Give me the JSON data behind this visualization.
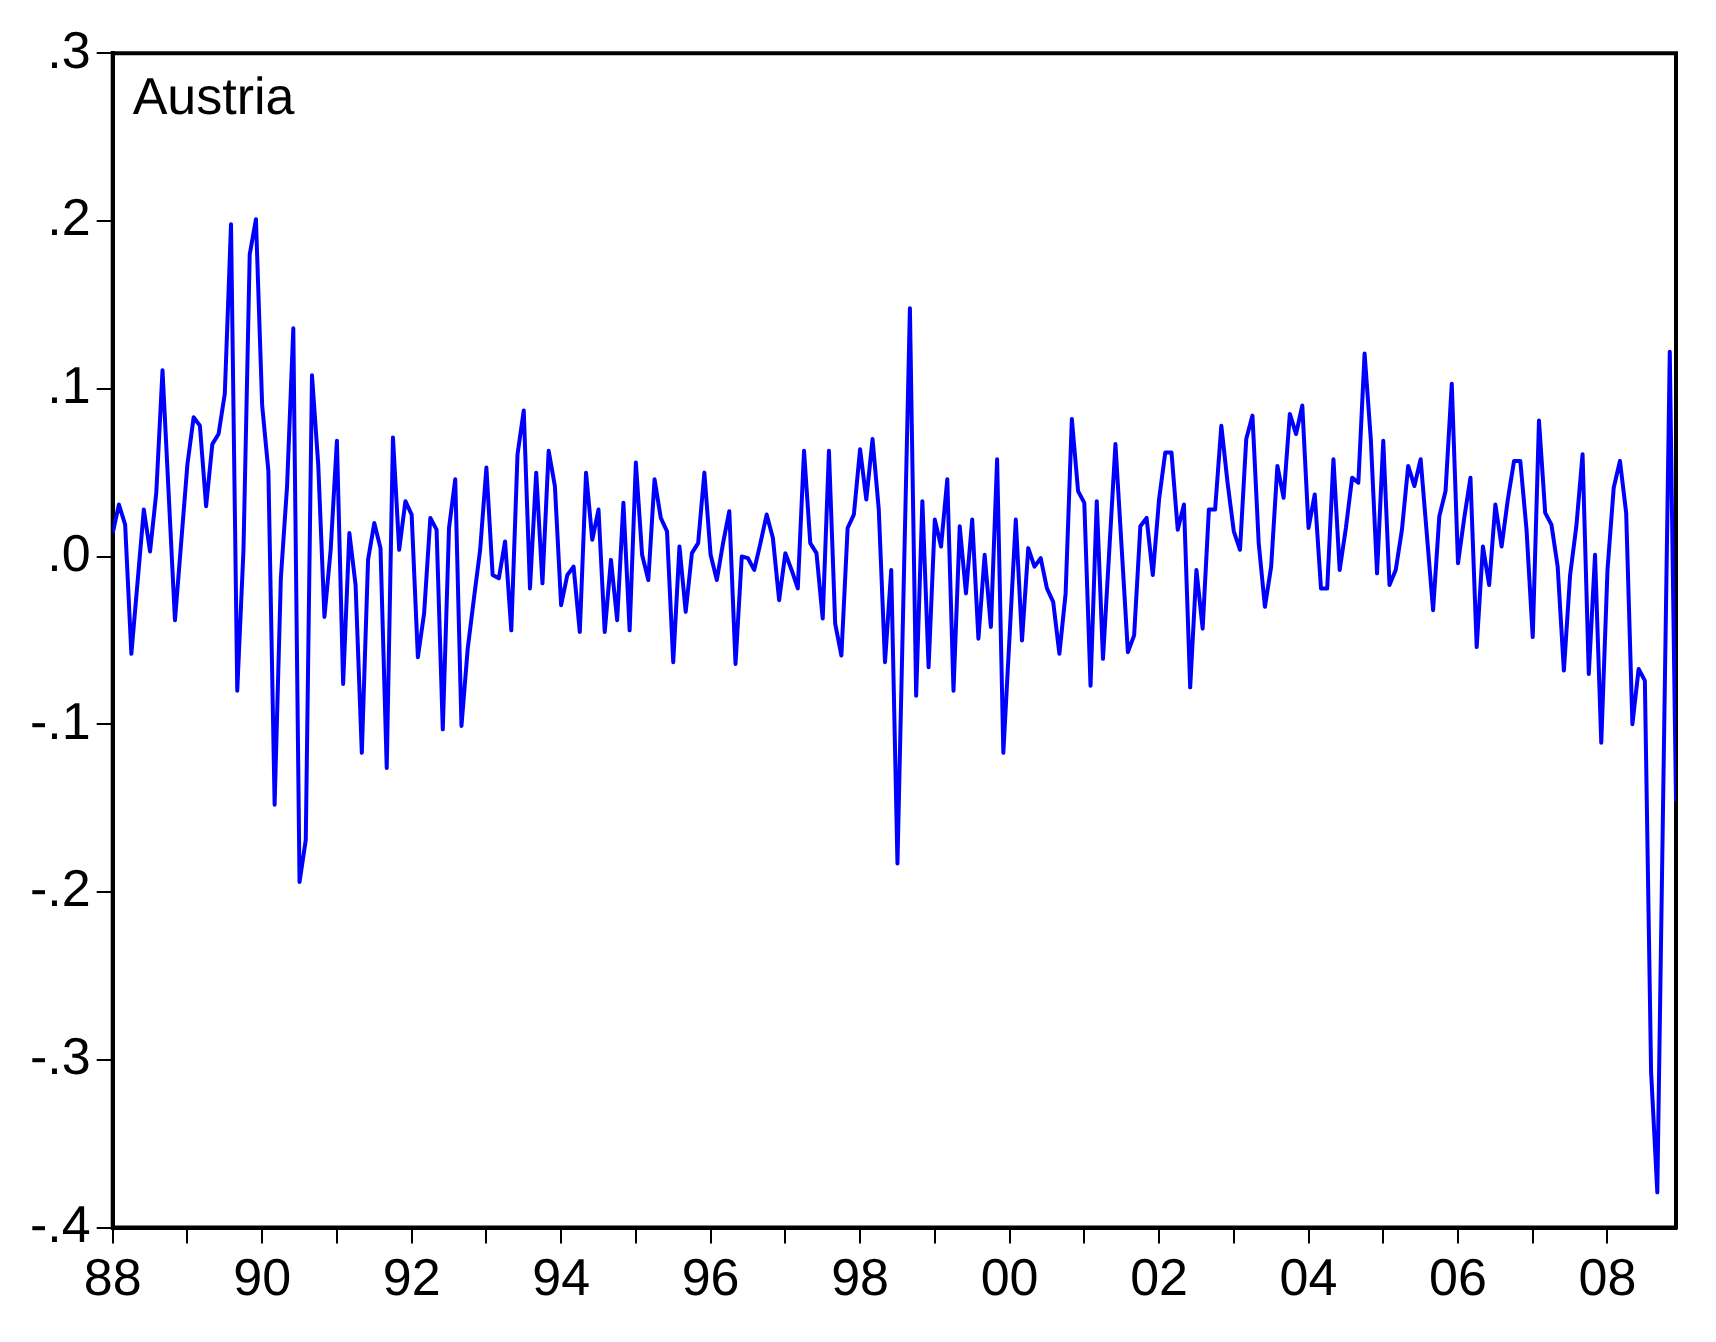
{
  "chart_data": {
    "type": "line",
    "title": "Austria",
    "legend": false,
    "grid": false,
    "marker": "none",
    "line_style": "solid",
    "xlim": [
      "1988-01",
      "2008-12"
    ],
    "xticks": [
      {
        "value": "1988-01",
        "label": "88"
      },
      {
        "value": "1989-01",
        "label": null
      },
      {
        "value": "1990-01",
        "label": "90"
      },
      {
        "value": "1991-01",
        "label": null
      },
      {
        "value": "1992-01",
        "label": "92"
      },
      {
        "value": "1993-01",
        "label": null
      },
      {
        "value": "1994-01",
        "label": "94"
      },
      {
        "value": "1995-01",
        "label": null
      },
      {
        "value": "1996-01",
        "label": "96"
      },
      {
        "value": "1997-01",
        "label": null
      },
      {
        "value": "1998-01",
        "label": "98"
      },
      {
        "value": "1999-01",
        "label": null
      },
      {
        "value": "2000-01",
        "label": "00"
      },
      {
        "value": "2001-01",
        "label": null
      },
      {
        "value": "2002-01",
        "label": "02"
      },
      {
        "value": "2003-01",
        "label": null
      },
      {
        "value": "2004-01",
        "label": "04"
      },
      {
        "value": "2005-01",
        "label": null
      },
      {
        "value": "2006-01",
        "label": "06"
      },
      {
        "value": "2007-01",
        "label": null
      },
      {
        "value": "2008-01",
        "label": "08"
      }
    ],
    "ylim": [
      -0.4,
      0.3
    ],
    "yticks": [
      {
        "value": -0.4,
        "label": "-.4"
      },
      {
        "value": -0.3,
        "label": "-.3"
      },
      {
        "value": -0.2,
        "label": "-.2"
      },
      {
        "value": -0.1,
        "label": "-.1"
      },
      {
        "value": 0,
        "label": ".0"
      },
      {
        "value": 0.1,
        "label": ".1"
      },
      {
        "value": 0.2,
        "label": ".2"
      },
      {
        "value": 0.3,
        "label": ".3"
      }
    ],
    "series": [
      {
        "color": "#0000ff",
        "x": [
          "1988-01",
          "1988-02",
          "1988-03",
          "1988-04",
          "1988-06",
          "1988-07",
          "1988-08",
          "1988-09",
          "1988-11",
          "1989-01",
          "1989-02",
          "1989-03",
          "1989-04",
          "1989-05",
          "1989-06",
          "1989-07",
          "1989-08",
          "1989-09",
          "1989-10",
          "1989-11",
          "1989-12",
          "1990-01",
          "1990-02",
          "1990-03",
          "1990-04",
          "1990-05",
          "1990-06",
          "1990-07",
          "1990-08",
          "1990-09",
          "1990-10",
          "1990-11",
          "1990-12",
          "1991-01",
          "1991-02",
          "1991-03",
          "1991-04",
          "1991-05",
          "1991-06",
          "1991-07",
          "1991-08",
          "1991-09",
          "1991-10",
          "1991-11",
          "1991-12",
          "1992-01",
          "1992-02",
          "1992-03",
          "1992-04",
          "1992-05",
          "1992-06",
          "1992-07",
          "1992-08",
          "1992-09",
          "1992-10",
          "1992-11",
          "1992-12",
          "1993-01",
          "1993-02",
          "1993-03",
          "1993-04",
          "1993-05",
          "1993-06",
          "1993-07",
          "1993-08",
          "1993-09",
          "1993-10",
          "1993-11",
          "1993-12",
          "1994-01",
          "1994-02",
          "1994-03",
          "1994-04",
          "1994-05",
          "1994-06",
          "1994-07",
          "1994-08",
          "1994-09",
          "1994-10",
          "1994-11",
          "1994-12",
          "1995-01",
          "1995-02",
          "1995-03",
          "1995-04",
          "1995-05",
          "1995-06",
          "1995-07",
          "1995-08",
          "1995-09",
          "1995-10",
          "1995-11",
          "1995-12",
          "1996-01",
          "1996-02",
          "1996-03",
          "1996-04",
          "1996-05",
          "1996-06",
          "1996-07",
          "1996-08",
          "1996-09",
          "1996-10",
          "1996-11",
          "1996-12",
          "1997-01",
          "1997-02",
          "1997-03",
          "1997-04",
          "1997-05",
          "1997-06",
          "1997-07",
          "1997-08",
          "1997-09",
          "1997-10",
          "1997-11",
          "1997-12",
          "1998-01",
          "1998-02",
          "1998-03",
          "1998-04",
          "1998-05",
          "1998-06",
          "1998-07",
          "1998-09",
          "1998-10",
          "1998-11",
          "1998-12",
          "1999-01",
          "1999-02",
          "1999-03",
          "1999-04",
          "1999-05",
          "1999-06",
          "1999-07",
          "1999-08",
          "1999-09",
          "1999-10",
          "1999-11",
          "1999-12",
          "2000-02",
          "2000-03",
          "2000-04",
          "2000-05",
          "2000-06",
          "2000-07",
          "2000-08",
          "2000-09",
          "2000-10",
          "2000-11",
          "2000-12",
          "2001-01",
          "2001-02",
          "2001-03",
          "2001-04",
          "2001-06",
          "2001-08",
          "2001-09",
          "2001-10",
          "2001-11",
          "2001-12",
          "2002-01",
          "2002-02",
          "2002-03",
          "2002-04",
          "2002-05",
          "2002-06",
          "2002-07",
          "2002-08",
          "2002-09",
          "2002-10",
          "2002-11",
          "2002-12",
          "2003-01",
          "2003-02",
          "2003-03",
          "2003-04",
          "2003-05",
          "2003-06",
          "2003-07",
          "2003-08",
          "2003-09",
          "2003-10",
          "2003-11",
          "2003-12",
          "2004-01",
          "2004-02",
          "2004-03",
          "2004-04",
          "2004-05",
          "2004-06",
          "2004-07",
          "2004-08",
          "2004-09",
          "2004-10",
          "2004-11",
          "2004-12",
          "2005-01",
          "2005-02",
          "2005-03",
          "2005-04",
          "2005-05",
          "2005-06",
          "2005-07",
          "2005-08",
          "2005-09",
          "2005-10",
          "2005-11",
          "2005-12",
          "2006-01",
          "2006-02",
          "2006-03",
          "2006-04",
          "2006-05",
          "2006-06",
          "2006-07",
          "2006-08",
          "2006-09",
          "2006-10",
          "2006-11",
          "2006-12",
          "2007-01",
          "2007-02",
          "2007-03",
          "2007-04",
          "2007-05",
          "2007-06",
          "2007-07",
          "2007-08",
          "2007-09",
          "2007-10",
          "2007-11",
          "2007-12",
          "2008-01",
          "2008-02",
          "2008-03",
          "2008-04",
          "2008-05",
          "2008-06",
          "2008-07",
          "2008-08",
          "2008-09",
          "2008-11",
          "2008-12"
        ],
        "values": [
          0.014,
          0.031,
          0.019,
          -0.058,
          0.028,
          0.003,
          0.038,
          0.111,
          -0.038,
          0.055,
          0.083,
          0.078,
          0.03,
          0.067,
          0.073,
          0.097,
          0.198,
          -0.08,
          0.004,
          0.18,
          0.201,
          0.09,
          0.051,
          -0.148,
          -0.013,
          0.042,
          0.136,
          -0.194,
          -0.169,
          0.108,
          0.055,
          -0.036,
          0.004,
          0.069,
          -0.076,
          0.014,
          -0.017,
          -0.117,
          -0.002,
          0.02,
          0.005,
          -0.126,
          0.071,
          0.004,
          0.033,
          0.025,
          -0.06,
          -0.034,
          0.023,
          0.016,
          -0.103,
          0.017,
          0.046,
          -0.101,
          -0.055,
          -0.025,
          0.004,
          0.053,
          -0.011,
          -0.013,
          0.009,
          -0.044,
          0.061,
          0.087,
          -0.019,
          0.05,
          -0.016,
          0.063,
          0.042,
          -0.029,
          -0.011,
          -0.006,
          -0.045,
          0.05,
          0.01,
          0.028,
          -0.045,
          -0.002,
          -0.038,
          0.032,
          -0.044,
          0.056,
          0.001,
          -0.014,
          0.046,
          0.023,
          0.015,
          -0.063,
          0.006,
          -0.033,
          0.002,
          0.008,
          0.05,
          0.001,
          -0.014,
          0.008,
          0.027,
          -0.064,
          0.0,
          -0.001,
          -0.008,
          0.008,
          0.025,
          0.011,
          -0.026,
          0.002,
          -0.008,
          -0.019,
          0.063,
          0.008,
          0.002,
          -0.037,
          0.063,
          -0.04,
          -0.059,
          0.017,
          0.025,
          0.064,
          0.034,
          0.07,
          0.028,
          -0.063,
          -0.008,
          -0.183,
          0.148,
          -0.083,
          0.033,
          -0.066,
          0.022,
          0.006,
          0.046,
          -0.08,
          0.018,
          -0.022,
          0.022,
          -0.049,
          0.001,
          -0.042,
          0.058,
          -0.117,
          0.022,
          -0.05,
          0.005,
          -0.006,
          -0.001,
          -0.019,
          -0.027,
          -0.058,
          -0.022,
          0.082,
          0.039,
          0.032,
          -0.077,
          0.033,
          -0.061,
          0.067,
          -0.057,
          -0.047,
          0.018,
          0.023,
          -0.011,
          0.034,
          0.062,
          0.062,
          0.016,
          0.031,
          -0.078,
          -0.008,
          -0.043,
          0.028,
          0.028,
          0.078,
          0.044,
          0.015,
          0.004,
          0.07,
          0.084,
          0.008,
          -0.03,
          -0.006,
          0.054,
          0.035,
          0.085,
          0.073,
          0.09,
          0.017,
          0.037,
          -0.019,
          -0.019,
          0.058,
          -0.008,
          0.017,
          0.047,
          0.044,
          0.121,
          0.07,
          -0.01,
          0.069,
          -0.017,
          -0.008,
          0.016,
          0.054,
          0.042,
          0.058,
          0.013,
          -0.032,
          0.024,
          0.039,
          0.103,
          -0.004,
          0.023,
          0.047,
          -0.054,
          0.006,
          -0.017,
          0.031,
          0.006,
          0.034,
          0.057,
          0.057,
          0.016,
          -0.048,
          0.081,
          0.026,
          0.019,
          -0.006,
          -0.068,
          -0.011,
          0.018,
          0.061,
          -0.07,
          0.001,
          -0.111,
          -0.008,
          0.041,
          0.057,
          0.026,
          -0.1,
          -0.067,
          -0.074,
          -0.307,
          -0.379,
          0.122,
          -0.146
        ]
      }
    ]
  }
}
